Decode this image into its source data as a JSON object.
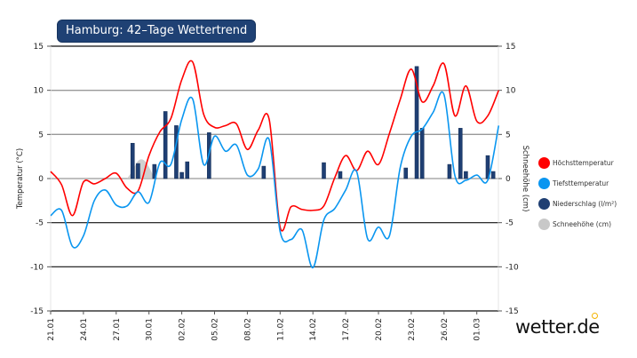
{
  "title": "Hamburg: 42–Tage Wettertrend",
  "logo": "wetter.de",
  "legend": [
    {
      "label": "Höchsttemperatur",
      "color": "#ff0000"
    },
    {
      "label": "Tiefsttemperatur",
      "color": "#0a96f0"
    },
    {
      "label": "Niederschlag (l/m²)",
      "color": "#1f3f73"
    },
    {
      "label": "Schneehöhe (cm)",
      "color": "#c8c8c8"
    }
  ],
  "chart_data": {
    "type": "line",
    "title": "Hamburg: 42–Tage Wettertrend",
    "ylabel": "Temperatur (°C)",
    "y2label": "Schneehöhe (cm)",
    "ylim": [
      -15,
      15
    ],
    "y2lim": [
      -15,
      15
    ],
    "yticks": [
      15,
      10,
      5,
      0,
      -5,
      -10,
      -15
    ],
    "grid": true,
    "legend_position": "right",
    "x": [
      "21.01",
      "22.01",
      "23.01",
      "24.01",
      "25.01",
      "26.01",
      "27.01",
      "28.01",
      "29.01",
      "30.01",
      "31.01",
      "01.02",
      "02.02",
      "03.02",
      "04.02",
      "05.02",
      "06.02",
      "07.02",
      "08.02",
      "09.02",
      "10.02",
      "11.02",
      "12.02",
      "13.02",
      "14.02",
      "15.02",
      "16.02",
      "17.02",
      "18.02",
      "19.02",
      "20.02",
      "21.02",
      "22.02",
      "23.02",
      "24.02",
      "25.02",
      "26.02",
      "27.02",
      "28.02",
      "01.03",
      "02.03",
      "03.03"
    ],
    "xticklabels": [
      "21.01",
      "24.01",
      "27.01",
      "30.01",
      "02.02",
      "05.02",
      "08.02",
      "11.02",
      "14.02",
      "17.02",
      "20.02",
      "23.02",
      "26.02",
      "01.03"
    ],
    "series": [
      {
        "name": "Höchsttemperatur",
        "color": "#ff0000",
        "values": [
          0.8,
          -0.7,
          -4.2,
          -0.4,
          -0.6,
          0.0,
          0.6,
          -1.1,
          -1.4,
          2.6,
          5.3,
          6.8,
          11.2,
          13.2,
          7.3,
          5.8,
          6.0,
          6.2,
          3.3,
          5.5,
          6.7,
          -5.5,
          -3.2,
          -3.5,
          -3.6,
          -3.1,
          0.1,
          2.6,
          0.9,
          3.1,
          1.6,
          5.1,
          9.0,
          12.4,
          8.7,
          10.5,
          13.0,
          7.1,
          10.5,
          6.5,
          7.1,
          10.0
        ]
      },
      {
        "name": "Tiefsttemperatur",
        "color": "#0a96f0",
        "values": [
          -4.2,
          -3.6,
          -7.7,
          -6.5,
          -2.5,
          -1.3,
          -3.0,
          -3.1,
          -1.5,
          -2.7,
          1.8,
          1.6,
          6.7,
          9.0,
          1.6,
          4.8,
          3.1,
          3.8,
          0.4,
          1.1,
          4.4,
          -6.0,
          -6.9,
          -5.8,
          -10.1,
          -4.7,
          -3.4,
          -1.3,
          0.8,
          -6.8,
          -5.5,
          -6.5,
          1.3,
          4.8,
          5.6,
          7.5,
          9.5,
          0.3,
          -0.2,
          0.4,
          -0.2,
          6.0
        ]
      },
      {
        "name": "Niederschlag (l/m²)",
        "color": "#1f3f73",
        "type": "bar",
        "points": [
          {
            "x": "28.01 12h",
            "value": 4.0
          },
          {
            "x": "29.01 0h",
            "value": 1.7
          },
          {
            "x": "30.01 12h",
            "value": 1.6
          },
          {
            "x": "31.01 12h",
            "value": 7.6
          },
          {
            "x": "01.02 12h",
            "value": 6.0
          },
          {
            "x": "02.02 0h",
            "value": 0.7
          },
          {
            "x": "02.02 12h",
            "value": 1.9
          },
          {
            "x": "04.02 12h",
            "value": 5.2
          },
          {
            "x": "09.02 12h",
            "value": 1.4
          },
          {
            "x": "15.02 0h",
            "value": 1.8
          },
          {
            "x": "16.02 12h",
            "value": 0.8
          },
          {
            "x": "22.02 12h",
            "value": 1.2
          },
          {
            "x": "23.02 12h",
            "value": 12.7
          },
          {
            "x": "24.02 0h",
            "value": 5.7
          },
          {
            "x": "26.02 12h",
            "value": 1.6
          },
          {
            "x": "27.02 12h",
            "value": 5.7
          },
          {
            "x": "28.02 0h",
            "value": 0.8
          },
          {
            "x": "02.03 0h",
            "value": 2.6
          },
          {
            "x": "02.03 12h",
            "value": 0.8
          }
        ]
      },
      {
        "name": "Schneehöhe (cm)",
        "color": "#c8c8c8",
        "type": "area",
        "points": [
          {
            "x": "28.01 0h",
            "value": 0
          },
          {
            "x": "28.01 12h",
            "value": 0.9
          },
          {
            "x": "29.01 0h",
            "value": 2.0
          },
          {
            "x": "29.01 12h",
            "value": 2.1
          },
          {
            "x": "30.01 0h",
            "value": 1.3
          },
          {
            "x": "30.01 12h",
            "value": 0
          }
        ]
      }
    ]
  }
}
